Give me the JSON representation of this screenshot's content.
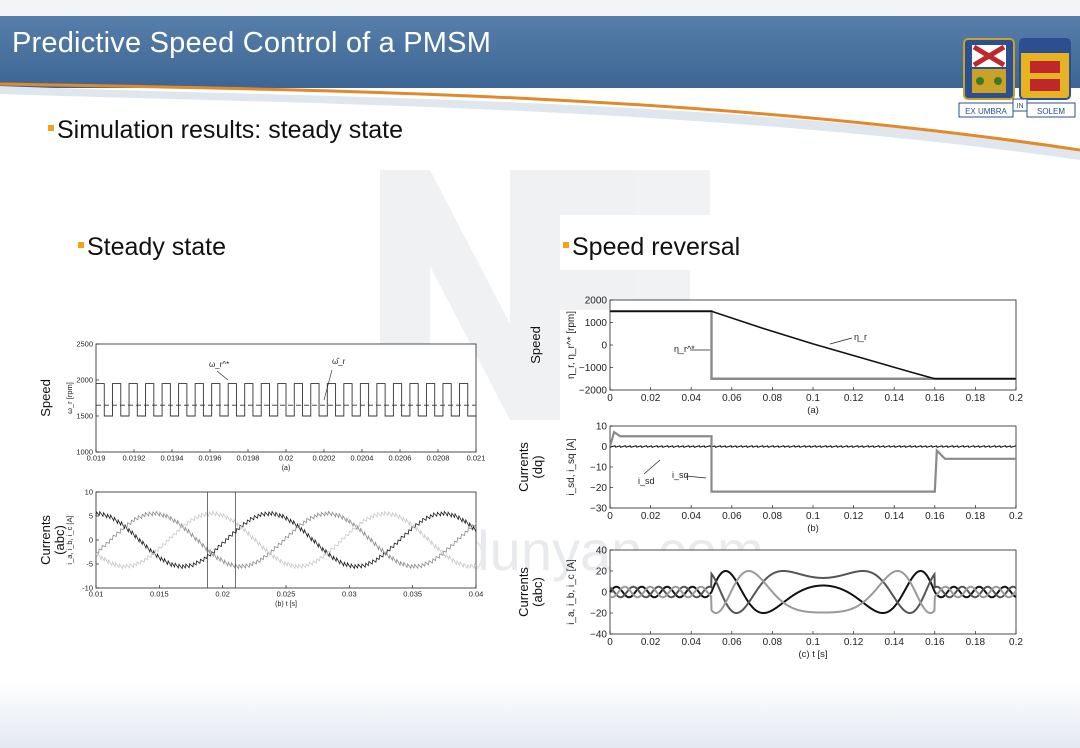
{
  "slide": {
    "title": "Predictive Speed Control of a PMSM",
    "bullet_main": "Simulation results: steady state",
    "section_left": "Steady state",
    "section_right": "Speed reversal",
    "watermark": "www.niudunyan.com",
    "logo_text": {
      "left": "EX UMBRA",
      "mid": "IN",
      "right": "SOLEM"
    },
    "colors": {
      "accent": "#f4a11c",
      "header": "#466f9e",
      "header_line": "#e08a2a"
    }
  },
  "chart_data": [
    {
      "id": "steady_speed",
      "type": "line",
      "row_label": [
        "Speed"
      ],
      "ylabel": "ω_r [rpm]",
      "xlim": [
        0.019,
        0.021
      ],
      "ylim": [
        1000,
        2500
      ],
      "xticks": [
        "0.019",
        "0.0192",
        "0.0194",
        "0.0196",
        "0.0198",
        "0.02",
        "0.0202",
        "0.0204",
        "0.0206",
        "0.0208",
        "0.021"
      ],
      "yticks": [
        "1000",
        "1500",
        "2000",
        "2500"
      ],
      "caption": "(a)",
      "annotations": [
        "ω_r^*",
        "ω̂_r"
      ],
      "series": [
        {
          "name": "ω_r (switching)",
          "low": 1500,
          "high": 1950,
          "cycles": 23,
          "color": "#333333"
        },
        {
          "name": "ω_r^* reference",
          "value": 1650,
          "style": "dashed",
          "color": "#333333"
        }
      ]
    },
    {
      "id": "steady_currents",
      "type": "line",
      "row_label": [
        "Currents",
        "(abc)"
      ],
      "ylabel": "i_a, i_b, i_c [A]",
      "xlim": [
        0.01,
        0.04
      ],
      "ylim": [
        -10,
        10
      ],
      "xticks": [
        "0.01",
        "0.015",
        "0.02",
        "0.025",
        "0.03",
        "0.035",
        "0.04"
      ],
      "yticks": [
        "-10",
        "-5",
        "0",
        "5",
        "10"
      ],
      "caption": "(b) t [s]",
      "markers_x": [
        0.0188,
        0.021
      ],
      "series": [
        {
          "name": "i_a",
          "amplitude": 5.5,
          "period": 0.0137,
          "phase_deg": 0,
          "color": "#1a1a1a"
        },
        {
          "name": "i_b",
          "amplitude": 5.5,
          "period": 0.0137,
          "phase_deg": -120,
          "color": "#8a8a8a"
        },
        {
          "name": "i_c",
          "amplitude": 5.5,
          "period": 0.0137,
          "phase_deg": 120,
          "color": "#c8c8c8"
        }
      ]
    },
    {
      "id": "reversal_speed",
      "type": "line",
      "row_label": [
        "Speed"
      ],
      "ylabel": "η_r, η_r^* [rpm]",
      "xlim": [
        0,
        0.2
      ],
      "ylim": [
        -2000,
        2000
      ],
      "xticks": [
        "0",
        "0.02",
        "0.04",
        "0.06",
        "0.08",
        "0.1",
        "0.12",
        "0.14",
        "0.16",
        "0.18",
        "0.2"
      ],
      "yticks": [
        "2000",
        "1000",
        "0",
        "−1000",
        "−2000"
      ],
      "caption": "(a)",
      "annotations": [
        "η_r^*",
        "η_r"
      ],
      "series": [
        {
          "name": "η_r^* reference",
          "x": [
            0,
            0.05,
            0.05,
            0.2
          ],
          "y": [
            1500,
            1500,
            -1500,
            -1500
          ],
          "color": "#8a8a8a"
        },
        {
          "name": "η_r",
          "x": [
            0,
            0.05,
            0.075,
            0.1,
            0.125,
            0.15,
            0.16,
            0.2
          ],
          "y": [
            1500,
            1500,
            750,
            50,
            -600,
            -1250,
            -1500,
            -1500
          ],
          "color": "#111111"
        }
      ]
    },
    {
      "id": "reversal_dq",
      "type": "line",
      "row_label": [
        "Currents",
        "(dq)"
      ],
      "ylabel": "i_sd, i_sq [A]",
      "xlim": [
        0,
        0.2
      ],
      "ylim": [
        -30,
        10
      ],
      "xticks": [
        "0",
        "0.02",
        "0.04",
        "0.06",
        "0.08",
        "0.1",
        "0.12",
        "0.14",
        "0.16",
        "0.18",
        "0.2"
      ],
      "yticks": [
        "10",
        "0",
        "−10",
        "−20",
        "−30"
      ],
      "caption": "(b)",
      "annotations": [
        "i_sd",
        "i_sq"
      ],
      "series": [
        {
          "name": "i_sd",
          "x": [
            0,
            0.2
          ],
          "y": [
            0,
            0
          ],
          "color": "#111111"
        },
        {
          "name": "i_sq",
          "x": [
            0,
            0.002,
            0.005,
            0.01,
            0.05,
            0.05,
            0.16,
            0.161,
            0.165,
            0.2
          ],
          "y": [
            0,
            7,
            5,
            5,
            5,
            -22,
            -22,
            -2,
            -6,
            -6
          ],
          "color": "#8a8a8a"
        }
      ]
    },
    {
      "id": "reversal_abc",
      "type": "line",
      "row_label": [
        "Currents",
        "(abc)"
      ],
      "ylabel": "i_a, i_b, i_c [A]",
      "xlim": [
        0,
        0.2
      ],
      "ylim": [
        -40,
        40
      ],
      "xticks": [
        "0",
        "0.02",
        "0.04",
        "0.06",
        "0.08",
        "0.1",
        "0.12",
        "0.14",
        "0.16",
        "0.18",
        "0.2"
      ],
      "yticks": [
        "40",
        "20",
        "0",
        "−20",
        "−40"
      ],
      "caption": "(c)  t [s]",
      "series": [
        {
          "name": "i_a",
          "color": "#111111",
          "phase_deg": 0
        },
        {
          "name": "i_b",
          "color": "#555555",
          "phase_deg": 120
        },
        {
          "name": "i_c",
          "color": "#9a9a9a",
          "phase_deg": 240
        }
      ],
      "envelope": {
        "steady_amplitude": 5,
        "reversal_amplitude": 20,
        "reversal_start": 0.05,
        "reversal_end": 0.16
      }
    }
  ]
}
